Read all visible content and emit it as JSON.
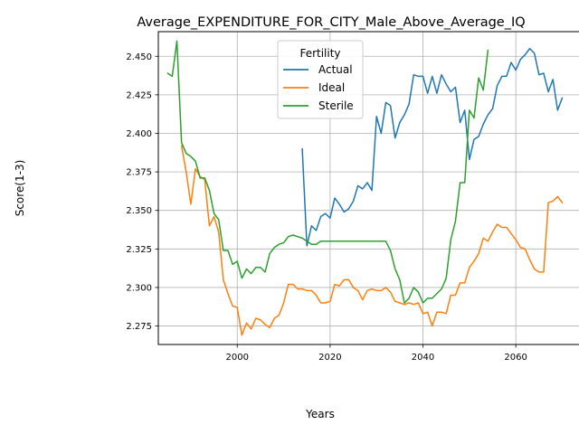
{
  "chart_data": {
    "type": "line",
    "title": "Average_EXPENDITURE_FOR_CITY_Male_Above_Average_IQ",
    "xlabel": "Years",
    "ylabel": "Score(1-3)",
    "xlim": [
      1983.0,
      2074.0
    ],
    "ylim": [
      2.263,
      2.466
    ],
    "xticks": [
      2000,
      2020,
      2040,
      2060
    ],
    "xtick_labels": [
      "2000",
      "2020",
      "2040",
      "2060"
    ],
    "yticks": [
      2.275,
      2.3,
      2.325,
      2.35,
      2.375,
      2.4,
      2.425,
      2.45
    ],
    "ytick_labels": [
      "2.275",
      "2.300",
      "2.325",
      "2.350",
      "2.375",
      "2.400",
      "2.425",
      "2.450"
    ],
    "grid": true,
    "legend": {
      "title": "Fertility",
      "position": "top-center"
    },
    "series": [
      {
        "name": "Actual",
        "color": "#1f77b4",
        "x": [
          2014,
          2015,
          2016,
          2017,
          2018,
          2019,
          2020,
          2021,
          2022,
          2023,
          2024,
          2025,
          2026,
          2027,
          2028,
          2029,
          2030,
          2031,
          2032,
          2033,
          2034,
          2035,
          2036,
          2037,
          2038,
          2039,
          2040,
          2041,
          2042,
          2043,
          2044,
          2045,
          2046,
          2047,
          2048,
          2049,
          2050,
          2051,
          2052,
          2053,
          2054,
          2055,
          2056,
          2057,
          2058,
          2059,
          2060,
          2061,
          2062,
          2063,
          2064,
          2065,
          2066,
          2067,
          2068,
          2069,
          2070
        ],
        "y": [
          2.39,
          2.327,
          2.34,
          2.337,
          2.346,
          2.348,
          2.345,
          2.358,
          2.354,
          2.349,
          2.351,
          2.356,
          2.366,
          2.364,
          2.368,
          2.363,
          2.411,
          2.4,
          2.42,
          2.418,
          2.397,
          2.407,
          2.412,
          2.419,
          2.438,
          2.437,
          2.437,
          2.426,
          2.437,
          2.426,
          2.438,
          2.432,
          2.427,
          2.43,
          2.407,
          2.415,
          2.383,
          2.396,
          2.398,
          2.406,
          2.412,
          2.416,
          2.431,
          2.437,
          2.437,
          2.446,
          2.441,
          2.448,
          2.451,
          2.455,
          2.452,
          2.438,
          2.439,
          2.427,
          2.435,
          2.415,
          2.423
        ]
      },
      {
        "name": "Ideal",
        "color": "#ff7f0e",
        "x": [
          1988,
          1989,
          1990,
          1991,
          1992,
          1993,
          1994,
          1995,
          1996,
          1997,
          1998,
          1999,
          2000,
          2001,
          2002,
          2003,
          2004,
          2005,
          2006,
          2007,
          2008,
          2009,
          2010,
          2011,
          2012,
          2013,
          2014,
          2015,
          2016,
          2017,
          2018,
          2019,
          2020,
          2021,
          2022,
          2023,
          2024,
          2025,
          2026,
          2027,
          2028,
          2029,
          2030,
          2031,
          2032,
          2033,
          2034,
          2035,
          2036,
          2037,
          2038,
          2039,
          2040,
          2041,
          2042,
          2043,
          2044,
          2045,
          2046,
          2047,
          2048,
          2049,
          2050,
          2051,
          2052,
          2053,
          2054,
          2055,
          2056,
          2057,
          2058,
          2059,
          2060,
          2061,
          2062,
          2063,
          2064,
          2065,
          2066,
          2067,
          2068,
          2069,
          2070
        ],
        "y": [
          2.392,
          2.375,
          2.354,
          2.377,
          2.372,
          2.37,
          2.34,
          2.346,
          2.336,
          2.305,
          2.296,
          2.288,
          2.287,
          2.269,
          2.277,
          2.273,
          2.28,
          2.279,
          2.276,
          2.274,
          2.28,
          2.282,
          2.29,
          2.302,
          2.302,
          2.299,
          2.299,
          2.298,
          2.298,
          2.295,
          2.29,
          2.29,
          2.291,
          2.302,
          2.301,
          2.305,
          2.305,
          2.3,
          2.298,
          2.292,
          2.298,
          2.299,
          2.298,
          2.298,
          2.3,
          2.297,
          2.291,
          2.29,
          2.289,
          2.29,
          2.289,
          2.29,
          2.283,
          2.284,
          2.275,
          2.284,
          2.284,
          2.283,
          2.295,
          2.295,
          2.303,
          2.303,
          2.313,
          2.317,
          2.322,
          2.332,
          2.33,
          2.336,
          2.341,
          2.339,
          2.339,
          2.335,
          2.331,
          2.326,
          2.325,
          2.318,
          2.312,
          2.31,
          2.31,
          2.355,
          2.356,
          2.359,
          2.355
        ]
      },
      {
        "name": "Sterile",
        "color": "#2ca02c",
        "x": [
          1985,
          1986,
          1987,
          1988,
          1989,
          1990,
          1991,
          1992,
          1993,
          1994,
          1995,
          1996,
          1997,
          1998,
          1999,
          2000,
          2001,
          2002,
          2003,
          2004,
          2005,
          2006,
          2007,
          2008,
          2009,
          2010,
          2011,
          2012,
          2013,
          2014,
          2015,
          2016,
          2017,
          2018,
          2019,
          2020,
          2021,
          2022,
          2023,
          2024,
          2025,
          2026,
          2027,
          2028,
          2029,
          2030,
          2031,
          2032,
          2033,
          2034,
          2035,
          2036,
          2037,
          2038,
          2039,
          2040,
          2041,
          2042,
          2043,
          2044,
          2045,
          2046,
          2047,
          2048,
          2049,
          2050,
          2051,
          2052,
          2053,
          2054
        ],
        "y": [
          2.439,
          2.437,
          2.46,
          2.394,
          2.387,
          2.385,
          2.382,
          2.371,
          2.371,
          2.363,
          2.348,
          2.344,
          2.324,
          2.324,
          2.315,
          2.317,
          2.306,
          2.312,
          2.309,
          2.313,
          2.313,
          2.31,
          2.322,
          2.326,
          2.328,
          2.329,
          2.333,
          2.334,
          2.333,
          2.332,
          2.33,
          2.328,
          2.328,
          2.33,
          2.33,
          2.33,
          2.33,
          2.33,
          2.33,
          2.33,
          2.33,
          2.33,
          2.33,
          2.33,
          2.33,
          2.33,
          2.33,
          2.33,
          2.324,
          2.312,
          2.305,
          2.29,
          2.293,
          2.3,
          2.297,
          2.29,
          2.293,
          2.293,
          2.296,
          2.299,
          2.306,
          2.331,
          2.343,
          2.368,
          2.368,
          2.415,
          2.41,
          2.436,
          2.428,
          2.454
        ]
      }
    ]
  }
}
